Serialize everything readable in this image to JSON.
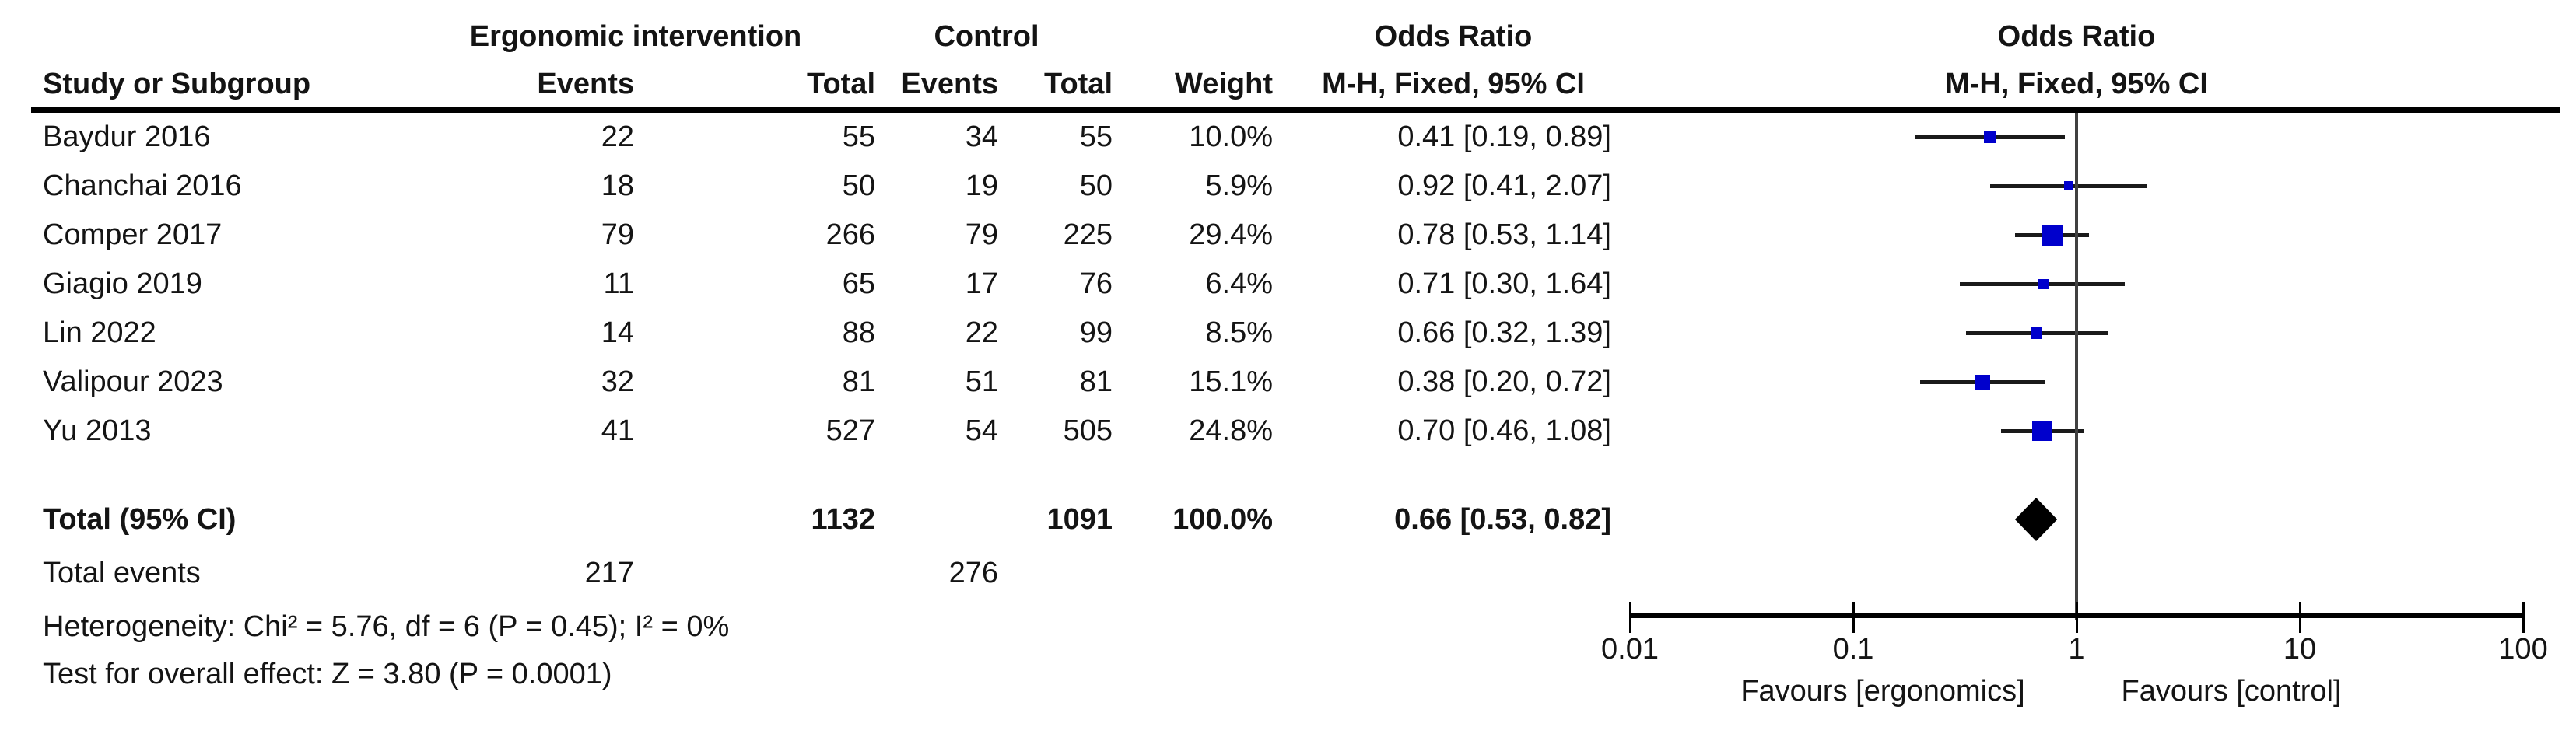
{
  "table": {
    "group_headers": {
      "ergonomic": "Ergonomic intervention",
      "control": "Control",
      "odds_ratio": "Odds Ratio"
    },
    "column_headers": {
      "study": "Study or Subgroup",
      "events": "Events",
      "total": "Total",
      "weight": "Weight",
      "mh_fixed_ci": "M-H, Fixed, 95% CI"
    }
  },
  "chart_data": {
    "type": "forest",
    "effect_measure": "Odds Ratio",
    "method": "M-H, Fixed, 95% CI",
    "x_scale": "log",
    "studies": [
      {
        "name": "Baydur 2016",
        "intervention_events": 22,
        "intervention_total": 55,
        "control_events": 34,
        "control_total": 55,
        "weight": "10.0%",
        "weight_pct": 10.0,
        "or": 0.41,
        "ci_low": 0.19,
        "ci_high": 0.89,
        "or_label": "0.41 [0.19, 0.89]"
      },
      {
        "name": "Chanchai 2016",
        "intervention_events": 18,
        "intervention_total": 50,
        "control_events": 19,
        "control_total": 50,
        "weight": "5.9%",
        "weight_pct": 5.9,
        "or": 0.92,
        "ci_low": 0.41,
        "ci_high": 2.07,
        "or_label": "0.92 [0.41, 2.07]"
      },
      {
        "name": "Comper 2017",
        "intervention_events": 79,
        "intervention_total": 266,
        "control_events": 79,
        "control_total": 225,
        "weight": "29.4%",
        "weight_pct": 29.4,
        "or": 0.78,
        "ci_low": 0.53,
        "ci_high": 1.14,
        "or_label": "0.78 [0.53, 1.14]"
      },
      {
        "name": "Giagio 2019",
        "intervention_events": 11,
        "intervention_total": 65,
        "control_events": 17,
        "control_total": 76,
        "weight": "6.4%",
        "weight_pct": 6.4,
        "or": 0.71,
        "ci_low": 0.3,
        "ci_high": 1.64,
        "or_label": "0.71 [0.30, 1.64]"
      },
      {
        "name": "Lin 2022",
        "intervention_events": 14,
        "intervention_total": 88,
        "control_events": 22,
        "control_total": 99,
        "weight": "8.5%",
        "weight_pct": 8.5,
        "or": 0.66,
        "ci_low": 0.32,
        "ci_high": 1.39,
        "or_label": "0.66 [0.32, 1.39]"
      },
      {
        "name": "Valipour 2023",
        "intervention_events": 32,
        "intervention_total": 81,
        "control_events": 51,
        "control_total": 81,
        "weight": "15.1%",
        "weight_pct": 15.1,
        "or": 0.38,
        "ci_low": 0.2,
        "ci_high": 0.72,
        "or_label": "0.38 [0.20, 0.72]"
      },
      {
        "name": "Yu 2013",
        "intervention_events": 41,
        "intervention_total": 527,
        "control_events": 54,
        "control_total": 505,
        "weight": "24.8%",
        "weight_pct": 24.8,
        "or": 0.7,
        "ci_low": 0.46,
        "ci_high": 1.08,
        "or_label": "0.70 [0.46, 1.08]"
      }
    ],
    "total": {
      "label": "Total (95% CI)",
      "intervention_total": 1132,
      "control_total": 1091,
      "weight": "100.0%",
      "or": 0.66,
      "ci_low": 0.53,
      "ci_high": 0.82,
      "or_label": "0.66 [0.53, 0.82]"
    },
    "total_events": {
      "label": "Total events",
      "intervention": 217,
      "control": 276
    },
    "heterogeneity": "Heterogeneity: Chi² = 5.76, df = 6 (P = 0.45); I² = 0%",
    "overall_effect": "Test for overall effect: Z = 3.80 (P = 0.0001)",
    "axis": {
      "scale": "log",
      "min": 0.01,
      "max": 100,
      "ticks": [
        "0.01",
        "0.1",
        "1",
        "10",
        "100"
      ]
    },
    "footer_left": "Favours [ergonomics]",
    "footer_right": "Favours [control]",
    "colors": {
      "square": "#0000CC",
      "ci_line": "#1a1a1a",
      "diamond": "#000000",
      "center_line": "#404040",
      "rule": "#000000"
    }
  }
}
